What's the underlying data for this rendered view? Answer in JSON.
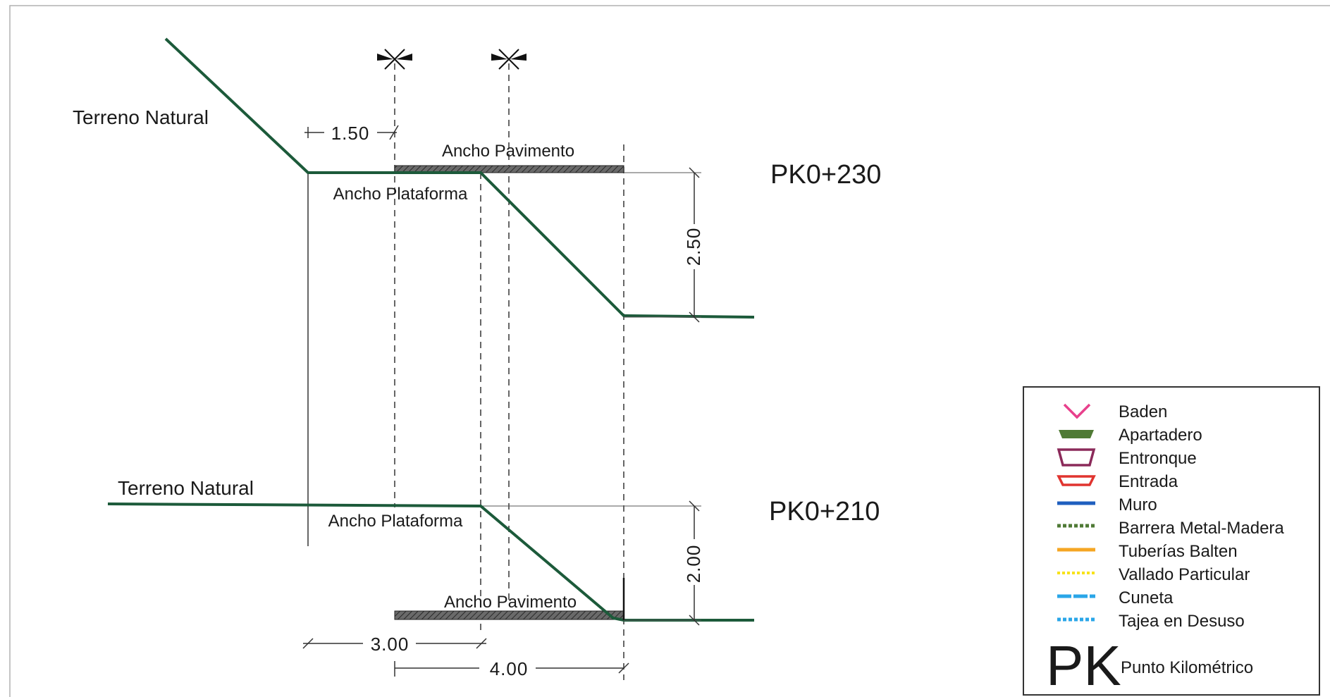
{
  "upper_section": {
    "terrain_label": "Terreno Natural",
    "pavement_label": "Ancho Pavimento",
    "platform_label": "Ancho Plataforma",
    "pk_label": "PK0+230",
    "dim_horizontal": "1.50",
    "dim_vertical": "2.50"
  },
  "lower_section": {
    "terrain_label": "Terreno Natural",
    "platform_label": "Ancho Plataforma",
    "pavement_label": "Ancho Pavimento",
    "pk_label": "PK0+210",
    "dim_vertical": "2.00",
    "dim_left": "3.00",
    "dim_bottom": "4.00"
  },
  "legend": {
    "items": [
      {
        "label": "Baden",
        "icon": "baden-icon",
        "color": "#e8408c"
      },
      {
        "label": "Apartadero",
        "icon": "apartadero-icon",
        "color": "#4f7a35"
      },
      {
        "label": "Entronque",
        "icon": "entronque-icon",
        "color": "#8b2a5a"
      },
      {
        "label": "Entrada",
        "icon": "entrada-icon",
        "color": "#e0342f"
      },
      {
        "label": "Muro",
        "icon": "muro-icon",
        "color": "#1f5fbf"
      },
      {
        "label": "Barrera Metal-Madera",
        "icon": "barrera-icon",
        "color": "#4f7a35"
      },
      {
        "label": "Tuberías Balten",
        "icon": "tuberias-icon",
        "color": "#f5a623"
      },
      {
        "label": "Vallado Particular",
        "icon": "vallado-icon",
        "color": "#f7e21a"
      },
      {
        "label": "Cuneta",
        "icon": "cuneta-icon",
        "color": "#2aa6e8"
      },
      {
        "label": "Tajea en Desuso",
        "icon": "tajea-icon",
        "color": "#2aa6e8"
      }
    ],
    "pk_symbol": "PK",
    "pk_description": "Punto Kilométrico"
  }
}
